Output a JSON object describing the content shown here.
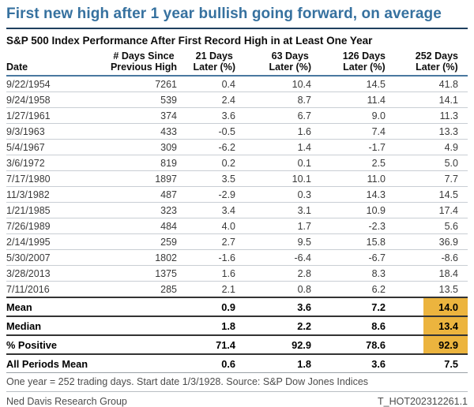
{
  "title": "First new high after 1 year bullish going forward, on average",
  "subtitle": "S&P 500 Index Performance After First Record High in at Least One Year",
  "footnote": "One year = 252 trading days. Start date 1/3/1928. Source: S&P Dow Jones Indices",
  "footer": {
    "org": "Ned Davis Research Group",
    "chart_code": "T_HOT202312261.1"
  },
  "colors": {
    "title_blue": "#36719f",
    "title_rule_navy": "#1f3f5e",
    "header_rule_blue": "#4a78a0",
    "highlight_yellow": "#ecb43e"
  },
  "chart_data": {
    "type": "table",
    "columns": [
      {
        "top": "",
        "bottom": "Date"
      },
      {
        "top": "# Days Since",
        "bottom": "Previous High"
      },
      {
        "top": "21 Days",
        "bottom": "Later (%)"
      },
      {
        "top": "63 Days",
        "bottom": "Later (%)"
      },
      {
        "top": "126 Days",
        "bottom": "Later (%)"
      },
      {
        "top": "252 Days",
        "bottom": "Later (%)"
      }
    ],
    "rows": [
      [
        "9/22/1954",
        "7261",
        "0.4",
        "10.4",
        "14.5",
        "41.8"
      ],
      [
        "9/24/1958",
        "539",
        "2.4",
        "8.7",
        "11.4",
        "14.1"
      ],
      [
        "1/27/1961",
        "374",
        "3.6",
        "6.7",
        "9.0",
        "11.3"
      ],
      [
        "9/3/1963",
        "433",
        "-0.5",
        "1.6",
        "7.4",
        "13.3"
      ],
      [
        "5/4/1967",
        "309",
        "-6.2",
        "1.4",
        "-1.7",
        "4.9"
      ],
      [
        "3/6/1972",
        "819",
        "0.2",
        "0.1",
        "2.5",
        "5.0"
      ],
      [
        "7/17/1980",
        "1897",
        "3.5",
        "10.1",
        "11.0",
        "7.7"
      ],
      [
        "11/3/1982",
        "487",
        "-2.9",
        "0.3",
        "14.3",
        "14.5"
      ],
      [
        "1/21/1985",
        "323",
        "3.4",
        "3.1",
        "10.9",
        "17.4"
      ],
      [
        "7/26/1989",
        "484",
        "4.0",
        "1.7",
        "-2.3",
        "5.6"
      ],
      [
        "2/14/1995",
        "259",
        "2.7",
        "9.5",
        "15.8",
        "36.9"
      ],
      [
        "5/30/2007",
        "1802",
        "-1.6",
        "-6.4",
        "-6.7",
        "-8.6"
      ],
      [
        "3/28/2013",
        "1375",
        "1.6",
        "2.8",
        "8.3",
        "18.4"
      ],
      [
        "7/11/2016",
        "285",
        "2.1",
        "0.8",
        "6.2",
        "13.5"
      ]
    ],
    "summary_rows": [
      {
        "label": "Mean",
        "values": [
          "",
          "0.9",
          "3.6",
          "7.2",
          "14.0"
        ],
        "highlight_last": true
      },
      {
        "label": "Median",
        "values": [
          "",
          "1.8",
          "2.2",
          "8.6",
          "13.4"
        ],
        "highlight_last": true
      },
      {
        "label": "% Positive",
        "values": [
          "",
          "71.4",
          "92.9",
          "78.6",
          "92.9"
        ],
        "highlight_last": true
      },
      {
        "label": "All Periods Mean",
        "values": [
          "",
          "0.6",
          "1.8",
          "3.6",
          "7.5"
        ],
        "highlight_last": false
      }
    ]
  }
}
